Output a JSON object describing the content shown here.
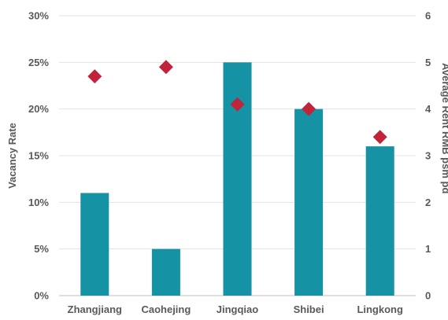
{
  "colors": {
    "bar": "#1592a3",
    "marker": "#c0233a",
    "grid": "#e3e3e3",
    "baseline": "#bfbfbf",
    "text": "#595959"
  },
  "chart_data": {
    "type": "bar",
    "categories": [
      "Zhangjiang",
      "Caohejing",
      "Jingqiao",
      "Shibei",
      "Lingkong"
    ],
    "series": [
      {
        "kind": "bar",
        "axis": "left",
        "values": [
          11,
          5,
          25,
          20,
          16
        ]
      },
      {
        "kind": "marker",
        "marker": "diamond",
        "axis": "right",
        "values": [
          4.7,
          4.9,
          4.1,
          4.0,
          3.4
        ]
      }
    ],
    "left_axis": {
      "label": "Vacancy Rate",
      "ylim": [
        0,
        30
      ],
      "ticks": [
        0,
        5,
        10,
        15,
        20,
        25,
        30
      ],
      "tick_labels": [
        "0%",
        "5%",
        "10%",
        "15%",
        "20%",
        "25%",
        "30%"
      ]
    },
    "right_axis": {
      "label": "Average Rent RMB psm pd",
      "ylim": [
        0,
        6
      ],
      "ticks": [
        0,
        1,
        2,
        3,
        4,
        5,
        6
      ],
      "tick_labels": [
        "0",
        "1",
        "2",
        "3",
        "4",
        "5",
        "6"
      ]
    },
    "grid": true,
    "legend": "none"
  }
}
